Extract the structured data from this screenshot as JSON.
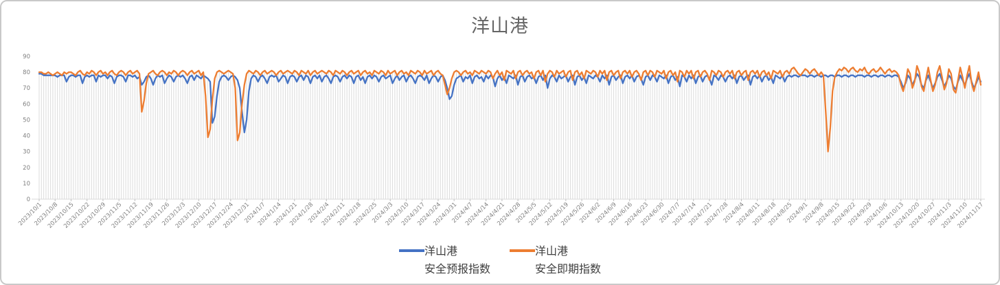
{
  "title": "洋山港",
  "legend": {
    "items": [
      {
        "line1": "洋山港",
        "line2": "安全预报指数"
      },
      {
        "line1": "洋山港",
        "line2": "安全即期指数"
      }
    ]
  },
  "chart_data": {
    "type": "line",
    "title": "洋山港",
    "xlabel": "",
    "ylabel": "",
    "ylim": [
      0,
      90
    ],
    "y_ticks": [
      0,
      10,
      20,
      30,
      40,
      50,
      60,
      70,
      80,
      90
    ],
    "grid": "daily vertical drop lines from each point to x-axis, no horizontal gridlines",
    "legend_position": "bottom",
    "x_daily_start": "2023/10/1",
    "x_daily_end": "2024/11/17",
    "x_tick_interval_days": 7,
    "x_tick_labels": [
      "2023/10/1",
      "2023/10/8",
      "2023/10/15",
      "2023/10/22",
      "2023/10/29",
      "2023/11/5",
      "2023/11/12",
      "2023/11/19",
      "2023/11/26",
      "2023/12/3",
      "2023/12/10",
      "2023/12/17",
      "2023/12/24",
      "2023/12/31",
      "2024/1/7",
      "2024/1/14",
      "2024/1/21",
      "2024/1/28",
      "2024/2/4",
      "2024/2/11",
      "2024/2/18",
      "2024/2/25",
      "2024/3/3",
      "2024/3/10",
      "2024/3/17",
      "2024/3/24",
      "2024/3/31",
      "2024/4/7",
      "2024/4/14",
      "2024/4/21",
      "2024/4/28",
      "2024/5/5",
      "2024/5/12",
      "2024/5/19",
      "2024/5/26",
      "2024/6/2",
      "2024/6/9",
      "2024/6/16",
      "2024/6/23",
      "2024/6/30",
      "2024/7/7",
      "2024/7/14",
      "2024/7/21",
      "2024/7/28",
      "2024/8/4",
      "2024/8/11",
      "2024/8/18",
      "2024/8/25",
      "2024/9/1",
      "2024/9/8",
      "2024/9/15",
      "2024/9/22",
      "2024/9/29",
      "2024/10/6",
      "2024/10/13",
      "2024/10/20",
      "2024/10/27",
      "2024/11/3",
      "2024/11/10",
      "2024/11/17"
    ],
    "series": [
      {
        "name": "洋山港 安全预报指数",
        "color": "#4472C4",
        "values": [
          79,
          79,
          78,
          78,
          78,
          78,
          78,
          78,
          77,
          78,
          78,
          78,
          74,
          77,
          78,
          78,
          77,
          78,
          78,
          73,
          77,
          78,
          77,
          78,
          78,
          74,
          78,
          77,
          78,
          78,
          76,
          78,
          77,
          73,
          77,
          78,
          78,
          77,
          74,
          78,
          78,
          77,
          78,
          76,
          77,
          72,
          74,
          77,
          78,
          76,
          72,
          76,
          78,
          77,
          78,
          73,
          76,
          78,
          77,
          74,
          77,
          78,
          77,
          78,
          76,
          73,
          77,
          78,
          75,
          78,
          77,
          76,
          78,
          77,
          76,
          74,
          48,
          52,
          65,
          74,
          77,
          78,
          77,
          75,
          77,
          78,
          77,
          75,
          70,
          55,
          42,
          50,
          68,
          76,
          78,
          77,
          74,
          77,
          78,
          76,
          73,
          77,
          78,
          77,
          78,
          74,
          76,
          78,
          77,
          73,
          77,
          78,
          77,
          74,
          77,
          78,
          75,
          78,
          77,
          73,
          77,
          78,
          76,
          78,
          74,
          77,
          78,
          76,
          73,
          77,
          78,
          77,
          74,
          77,
          78,
          76,
          78,
          77,
          73,
          77,
          78,
          75,
          77,
          73,
          77,
          78,
          76,
          78,
          77,
          74,
          77,
          78,
          76,
          77,
          78,
          73,
          76,
          78,
          75,
          77,
          78,
          74,
          77,
          78,
          76,
          73,
          77,
          78,
          77,
          75,
          78,
          73,
          76,
          78,
          77,
          74,
          77,
          78,
          75,
          70,
          63,
          65,
          72,
          76,
          77,
          78,
          74,
          77,
          76,
          78,
          73,
          77,
          78,
          76,
          77,
          74,
          78,
          76,
          78,
          77,
          71,
          76,
          78,
          75,
          77,
          73,
          78,
          77,
          76,
          78,
          72,
          77,
          78,
          74,
          77,
          78,
          76,
          77,
          73,
          77,
          78,
          75,
          78,
          70,
          76,
          78,
          77,
          74,
          78,
          76,
          77,
          78,
          74,
          77,
          78,
          72,
          77,
          78,
          75,
          77,
          73,
          78,
          77,
          76,
          78,
          77,
          74,
          78,
          76,
          78,
          72,
          77,
          78,
          75,
          77,
          78,
          73,
          77,
          78,
          76,
          78,
          74,
          77,
          78,
          76,
          72,
          77,
          78,
          75,
          78,
          77,
          74,
          78,
          77,
          76,
          78,
          73,
          77,
          78,
          75,
          77,
          71,
          78,
          77,
          74,
          78,
          76,
          78,
          73,
          77,
          78,
          74,
          77,
          78,
          76,
          72,
          78,
          77,
          75,
          78,
          77,
          74,
          77,
          78,
          76,
          78,
          73,
          77,
          78,
          75,
          77,
          78,
          72,
          77,
          78,
          76,
          78,
          74,
          77,
          78,
          75,
          77,
          73,
          78,
          77,
          76,
          78,
          74,
          77,
          78,
          77,
          78,
          78,
          77,
          78,
          78,
          78,
          77,
          78,
          78,
          77,
          78,
          78,
          77,
          78,
          78,
          77,
          78,
          78,
          77,
          78,
          78,
          77,
          78,
          78,
          77,
          78,
          78,
          77,
          78,
          78,
          78,
          77,
          78,
          78,
          77,
          78,
          78,
          77,
          78,
          78,
          77,
          78,
          78,
          77,
          78,
          78,
          77,
          74,
          70,
          73,
          78,
          76,
          72,
          75,
          79,
          77,
          72,
          70,
          75,
          78,
          74,
          70,
          73,
          77,
          79,
          75,
          71,
          74,
          78,
          76,
          71,
          69,
          74,
          78,
          75,
          72,
          76,
          79,
          74,
          70,
          73,
          77,
          74
        ]
      },
      {
        "name": "洋山港 安全即期指数",
        "color": "#ED7D31",
        "values": [
          80,
          80,
          79,
          79,
          80,
          79,
          78,
          79,
          80,
          79,
          78,
          80,
          79,
          80,
          80,
          79,
          78,
          80,
          81,
          79,
          78,
          80,
          79,
          81,
          80,
          78,
          80,
          81,
          79,
          80,
          78,
          80,
          81,
          79,
          78,
          80,
          81,
          80,
          78,
          80,
          81,
          79,
          80,
          81,
          79,
          55,
          62,
          73,
          79,
          80,
          81,
          79,
          78,
          80,
          81,
          80,
          78,
          80,
          79,
          81,
          80,
          78,
          80,
          81,
          80,
          78,
          80,
          81,
          79,
          80,
          81,
          78,
          80,
          65,
          39,
          44,
          63,
          76,
          80,
          81,
          80,
          79,
          80,
          81,
          80,
          79,
          70,
          37,
          42,
          60,
          72,
          79,
          81,
          80,
          79,
          81,
          80,
          78,
          80,
          81,
          79,
          80,
          81,
          80,
          78,
          80,
          81,
          79,
          80,
          81,
          80,
          79,
          81,
          80,
          78,
          81,
          80,
          79,
          81,
          78,
          80,
          81,
          79,
          80,
          81,
          80,
          79,
          81,
          80,
          78,
          81,
          80,
          79,
          81,
          80,
          78,
          80,
          81,
          79,
          80,
          81,
          78,
          80,
          81,
          79,
          80,
          78,
          81,
          80,
          79,
          81,
          80,
          78,
          81,
          79,
          80,
          81,
          78,
          80,
          81,
          79,
          80,
          78,
          81,
          80,
          79,
          81,
          80,
          78,
          81,
          79,
          80,
          81,
          78,
          80,
          81,
          79,
          78,
          72,
          66,
          70,
          76,
          80,
          81,
          80,
          78,
          80,
          81,
          79,
          80,
          78,
          81,
          80,
          79,
          81,
          80,
          79,
          81,
          80,
          76,
          79,
          81,
          78,
          80,
          75,
          81,
          80,
          79,
          81,
          76,
          80,
          81,
          78,
          80,
          81,
          79,
          80,
          76,
          80,
          81,
          78,
          81,
          74,
          79,
          81,
          80,
          77,
          81,
          79,
          80,
          81,
          77,
          80,
          81,
          75,
          80,
          81,
          78,
          80,
          76,
          81,
          80,
          79,
          81,
          80,
          77,
          81,
          79,
          81,
          75,
          80,
          81,
          78,
          80,
          81,
          76,
          80,
          81,
          79,
          81,
          77,
          80,
          81,
          79,
          75,
          80,
          81,
          78,
          81,
          80,
          77,
          81,
          80,
          79,
          81,
          76,
          80,
          81,
          78,
          80,
          74,
          81,
          80,
          77,
          81,
          79,
          81,
          76,
          80,
          81,
          77,
          80,
          81,
          79,
          75,
          81,
          80,
          78,
          81,
          80,
          77,
          80,
          81,
          79,
          81,
          76,
          80,
          81,
          78,
          80,
          81,
          75,
          80,
          81,
          79,
          81,
          77,
          80,
          81,
          78,
          80,
          76,
          81,
          80,
          79,
          81,
          77,
          80,
          81,
          79,
          82,
          83,
          81,
          79,
          78,
          80,
          82,
          81,
          79,
          81,
          82,
          80,
          78,
          80,
          78,
          55,
          30,
          45,
          68,
          77,
          80,
          82,
          81,
          83,
          82,
          80,
          82,
          83,
          81,
          80,
          82,
          81,
          83,
          80,
          79,
          81,
          82,
          80,
          81,
          83,
          81,
          79,
          81,
          82,
          80,
          81,
          80,
          78,
          72,
          68,
          74,
          82,
          79,
          70,
          74,
          84,
          80,
          71,
          68,
          76,
          83,
          75,
          68,
          72,
          80,
          84,
          77,
          69,
          73,
          82,
          79,
          69,
          67,
          75,
          83,
          77,
          70,
          78,
          84,
          73,
          68,
          74,
          80,
          72
        ]
      }
    ]
  }
}
